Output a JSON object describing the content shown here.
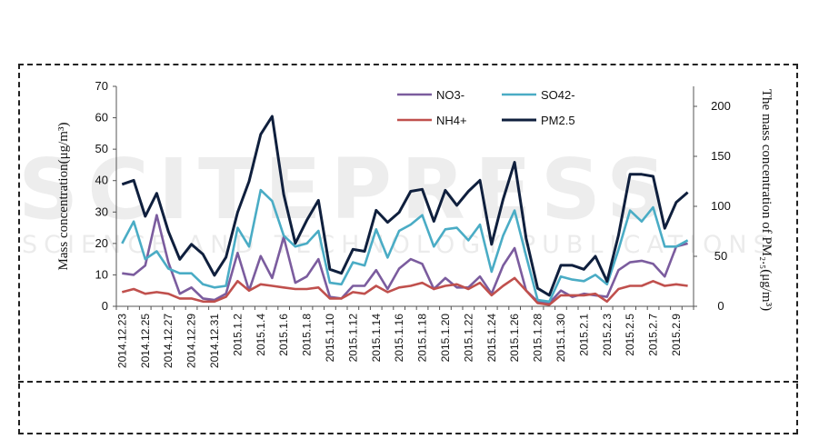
{
  "watermark": {
    "title": "SCITEPRESS",
    "subtitle": "SCIENCE AND TECHNOLOGY PUBLICATIONS"
  },
  "chart_data": {
    "type": "line",
    "ylabel_left": "Mass concentration(μg/m³)",
    "ylabel_right": "The mass concentration of PM₂.₅(μg/m³)",
    "ylim_left": [
      0,
      70
    ],
    "ylim_right": [
      0,
      220
    ],
    "yticks_left": [
      0,
      10,
      20,
      30,
      40,
      50,
      60,
      70
    ],
    "yticks_right": [
      0,
      50,
      100,
      150,
      200
    ],
    "grid": false,
    "legend_position": "top-center",
    "x_tick_labels": [
      "2014.12.23",
      "2014.12.25",
      "2014.12.27",
      "2014.12.29",
      "2014.12.31",
      "2015.1.2",
      "2015.1.4",
      "2015.1.6",
      "2015.1.8",
      "2015.1.10",
      "2015.1.12",
      "2015.1.14",
      "2015.1.16",
      "2015.1.18",
      "2015.1.20",
      "2015.1.22",
      "2015.1.24",
      "2015.1.26",
      "2015.1.28",
      "2015.1.30",
      "2015.2.1",
      "2015.2.3",
      "2015.2.5",
      "2015.2.7",
      "2015.2.9"
    ],
    "x_count": 50,
    "series": [
      {
        "name": "NO3-",
        "axis": "left",
        "color": "#7b5c9e",
        "values": [
          10.5,
          10,
          13,
          29,
          14,
          4,
          6,
          2.5,
          2,
          4,
          17,
          5,
          16,
          9,
          22,
          7.5,
          9.5,
          15,
          3,
          2.5,
          6.5,
          6.5,
          11.5,
          5.5,
          12,
          15,
          13.5,
          5.5,
          9,
          6,
          6,
          9.5,
          4,
          13,
          18.5,
          5,
          1.5,
          1,
          5,
          3,
          4,
          3.5,
          3,
          11.5,
          14,
          14.5,
          13.5,
          9.5,
          19,
          20
        ]
      },
      {
        "name": "SO42-",
        "axis": "left",
        "color": "#4aacc5",
        "values": [
          20,
          27,
          15,
          17.5,
          12,
          10.5,
          10.5,
          7,
          6,
          6.5,
          25,
          19,
          37,
          33.5,
          22.5,
          19,
          20,
          24,
          7.5,
          7,
          14,
          13,
          24.5,
          15.5,
          24,
          26,
          29,
          19,
          24.5,
          25,
          21,
          26,
          11,
          22.5,
          30.5,
          16,
          2,
          1.5,
          9.5,
          8.5,
          8,
          10,
          7,
          18,
          30.5,
          27,
          31.5,
          19,
          19,
          21
        ]
      },
      {
        "name": "NH4+",
        "axis": "left",
        "color": "#c0504d",
        "values": [
          4.5,
          5.5,
          4,
          4.5,
          4,
          2.5,
          2.5,
          1.5,
          1.5,
          3,
          8,
          5,
          7,
          6.5,
          6,
          5.5,
          5.5,
          6,
          2.5,
          2.5,
          4.5,
          4,
          6.5,
          4.5,
          6,
          6.5,
          7.5,
          5.5,
          6.5,
          7,
          5.5,
          7.5,
          3.5,
          6.5,
          9,
          5,
          1,
          0.5,
          3.5,
          3.5,
          3.5,
          4,
          1.5,
          5.5,
          6.5,
          6.5,
          8,
          6.5,
          7,
          6.5
        ]
      },
      {
        "name": "PM2.5",
        "axis": "right",
        "color": "#0f1f3d",
        "values": [
          122,
          126,
          90,
          113,
          75,
          47,
          62,
          52,
          31,
          49,
          94,
          125,
          172,
          190,
          112,
          63,
          86,
          106,
          37,
          33,
          57,
          55,
          96,
          84,
          94,
          115,
          117,
          85,
          116,
          101,
          115,
          126,
          62,
          107,
          144,
          68,
          18,
          11,
          41,
          41,
          37,
          50,
          25,
          71,
          132,
          132,
          130,
          78,
          104,
          114
        ]
      }
    ]
  }
}
